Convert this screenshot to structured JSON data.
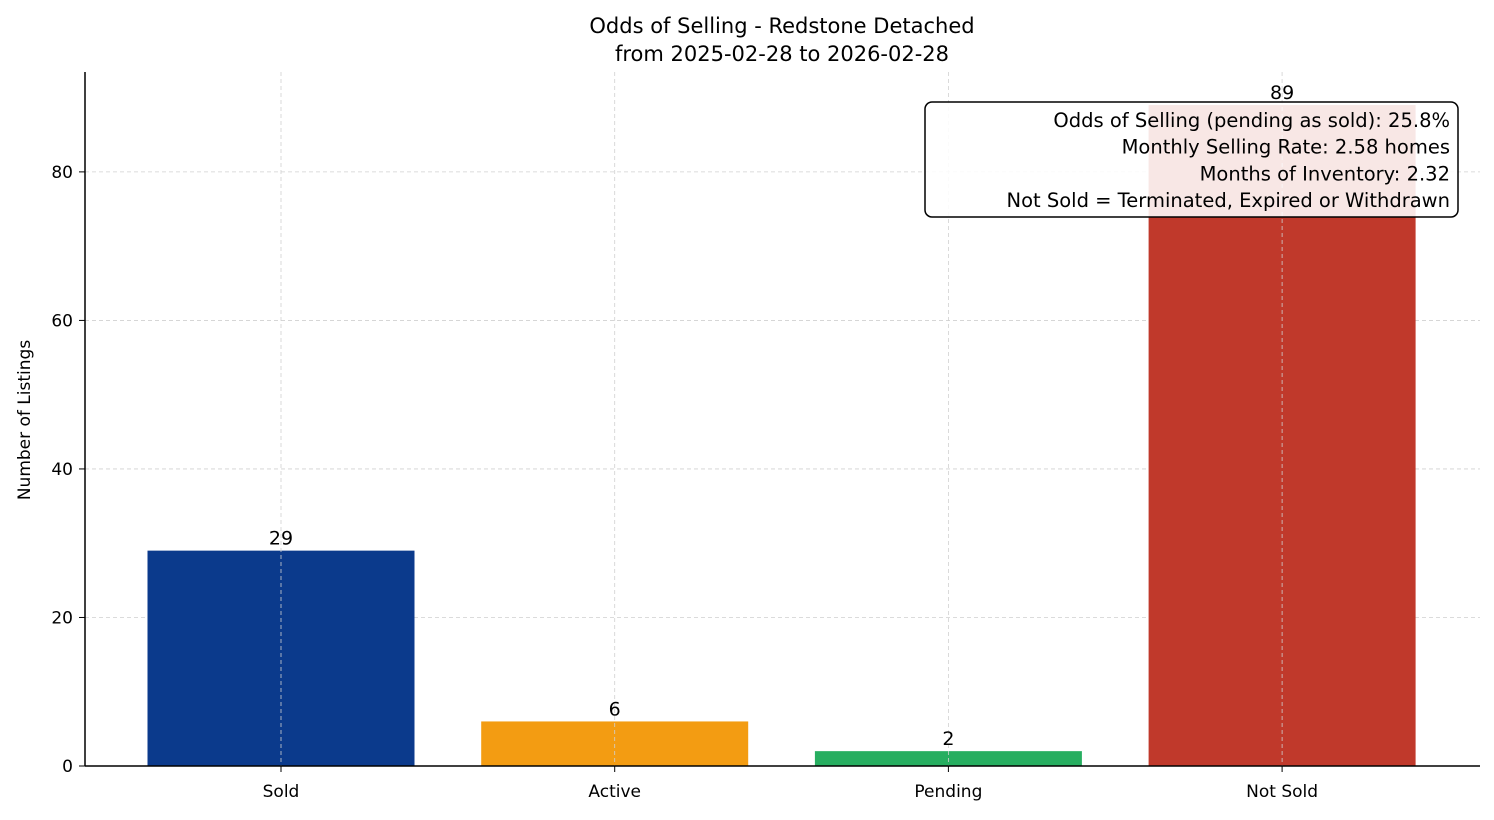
{
  "chart_data": {
    "type": "bar",
    "title": "Odds of Selling - Redstone Detached",
    "subtitle": "from 2025-02-28 to 2026-02-28",
    "xlabel": "",
    "ylabel": "Number of Listings",
    "categories": [
      "Sold",
      "Active",
      "Pending",
      "Not Sold"
    ],
    "values": [
      29,
      6,
      2,
      89
    ],
    "data_labels": [
      "29",
      "6",
      "2",
      "89"
    ],
    "colors": [
      "#0b3a8c",
      "#f39c12",
      "#27ae60",
      "#c0392b"
    ],
    "ylim": [
      0,
      93.45
    ],
    "yticks": [
      0,
      20,
      40,
      60,
      80
    ],
    "grid": true,
    "annotation": [
      "Odds of Selling (pending as sold): 25.8%",
      "Monthly Selling Rate: 2.58 homes",
      "Months of Inventory: 2.32",
      "Not Sold = Terminated, Expired or Withdrawn"
    ],
    "annotation_placement": "top-right"
  }
}
